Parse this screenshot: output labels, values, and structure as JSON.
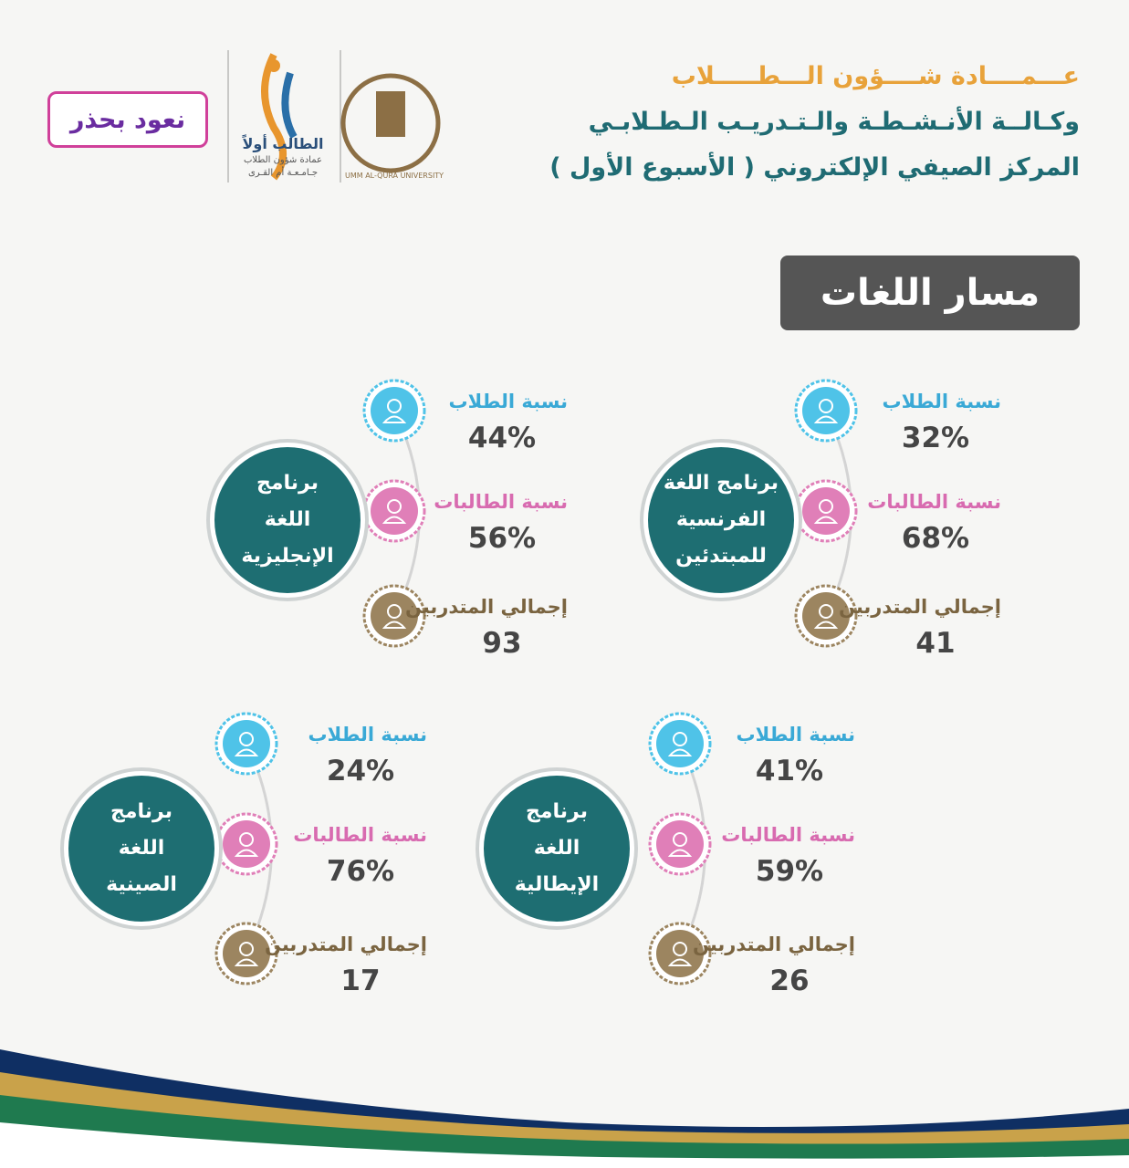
{
  "header": {
    "lines": [
      "عـــمــــادة شــــؤون الـــطـــــلاب",
      "وكـالــة الأنـشـطـة والـتـدريـب الـطـلابـي",
      "المركز الصيفي الإلكتروني ( الأسبوع الأول )"
    ]
  },
  "logos": {
    "campaign": "نعود بحذر",
    "student_first": "الطالب أولاً",
    "deanship": "عمادة شؤون الطلاب",
    "university": "جـامـعـة أم القـرى",
    "seal": "UMM AL-QURA UNIVERSITY"
  },
  "section_title": "مسار اللغات",
  "programs": [
    {
      "name": [
        "برنامج اللغة",
        "الفرنسية",
        "للمبتدئين"
      ],
      "stats": [
        {
          "label": "نسبة الطلاب",
          "value": "32%"
        },
        {
          "label": "نسبة الطالبات",
          "value": "68%"
        },
        {
          "label": "إجمالي المتدربين",
          "value": "41"
        }
      ]
    },
    {
      "name": [
        "برنامج",
        "اللغة",
        "الإنجليزية"
      ],
      "stats": [
        {
          "label": "نسبة الطلاب",
          "value": "44%"
        },
        {
          "label": "نسبة الطالبات",
          "value": "56%"
        },
        {
          "label": "إجمالي المتدربين",
          "value": "93"
        }
      ]
    },
    {
      "name": [
        "برنامج",
        "اللغة",
        "الإيطالية"
      ],
      "stats": [
        {
          "label": "نسبة الطلاب",
          "value": "41%"
        },
        {
          "label": "نسبة الطالبات",
          "value": "59%"
        },
        {
          "label": "إجمالي المتدربين",
          "value": "26"
        }
      ]
    },
    {
      "name": [
        "برنامج",
        "اللغة",
        "الصينية"
      ],
      "stats": [
        {
          "label": "نسبة الطلاب",
          "value": "24%"
        },
        {
          "label": "نسبة الطالبات",
          "value": "76%"
        },
        {
          "label": "إجمالي المتدربين",
          "value": "17"
        }
      ]
    }
  ]
}
